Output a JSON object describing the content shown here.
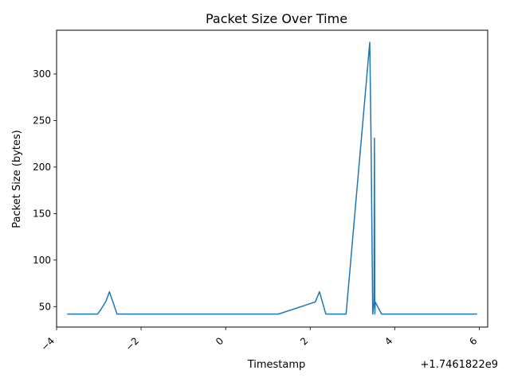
{
  "chart_data": {
    "type": "line",
    "title": "Packet Size Over Time",
    "xlabel": "Timestamp",
    "ylabel": "Packet Size (bytes)",
    "x_offset_label": "+1.7461822e9",
    "xlim": [
      -4.0,
      6.2
    ],
    "ylim": [
      28,
      347
    ],
    "xticks": [
      -4,
      -2,
      0,
      2,
      4,
      6
    ],
    "xtick_labels": [
      "−4",
      "−2",
      "0",
      "2",
      "4",
      "6"
    ],
    "yticks": [
      50,
      100,
      150,
      200,
      250,
      300
    ],
    "ytick_labels": [
      "50",
      "100",
      "150",
      "200",
      "250",
      "300"
    ],
    "grid": false,
    "series": [
      {
        "color": "#1f77b4",
        "x": [
          -3.75,
          -3.03,
          -2.95,
          -2.83,
          -2.75,
          -2.57,
          1.25,
          2.12,
          2.22,
          2.37,
          2.57,
          2.85,
          3.41,
          3.44,
          3.48,
          3.51,
          3.52,
          3.53,
          3.54,
          3.69,
          5.95
        ],
        "y": [
          42,
          42,
          47,
          56,
          66,
          42,
          42,
          55,
          66,
          42,
          42,
          42,
          334,
          230,
          42,
          55,
          231,
          42,
          55,
          42,
          42
        ]
      }
    ]
  }
}
